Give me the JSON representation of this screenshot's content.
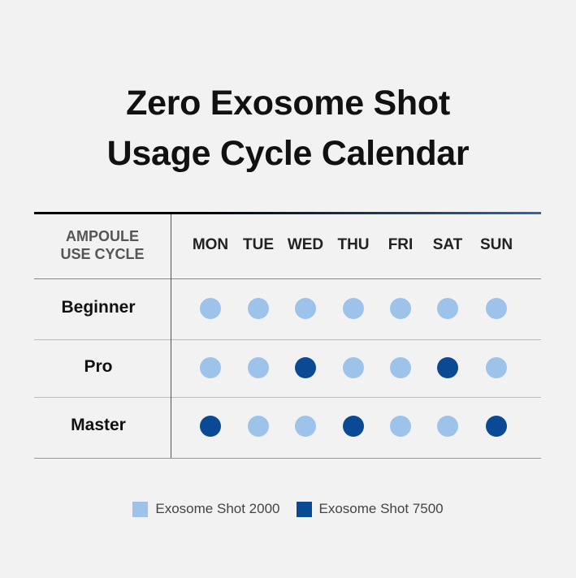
{
  "title_line1": "Zero Exosome Shot",
  "title_line2": "Usage Cycle Calendar",
  "header_left": [
    "AMPOULE",
    "USE CYCLE"
  ],
  "days": [
    "MON",
    "TUE",
    "WED",
    "THU",
    "FRI",
    "SAT",
    "SUN"
  ],
  "colors": {
    "2000": "#9dc3ea",
    "7500": "#0a4a94"
  },
  "rows": [
    {
      "label": "Beginner",
      "cells": [
        "2000",
        "2000",
        "2000",
        "2000",
        "2000",
        "2000",
        "2000"
      ]
    },
    {
      "label": "Pro",
      "cells": [
        "2000",
        "2000",
        "7500",
        "2000",
        "2000",
        "7500",
        "2000"
      ]
    },
    {
      "label": "Master",
      "cells": [
        "7500",
        "2000",
        "2000",
        "7500",
        "2000",
        "2000",
        "7500"
      ]
    }
  ],
  "legend": [
    {
      "label": "Exosome Shot 2000",
      "key": "2000"
    },
    {
      "label": "Exosome Shot 7500",
      "key": "7500"
    }
  ]
}
